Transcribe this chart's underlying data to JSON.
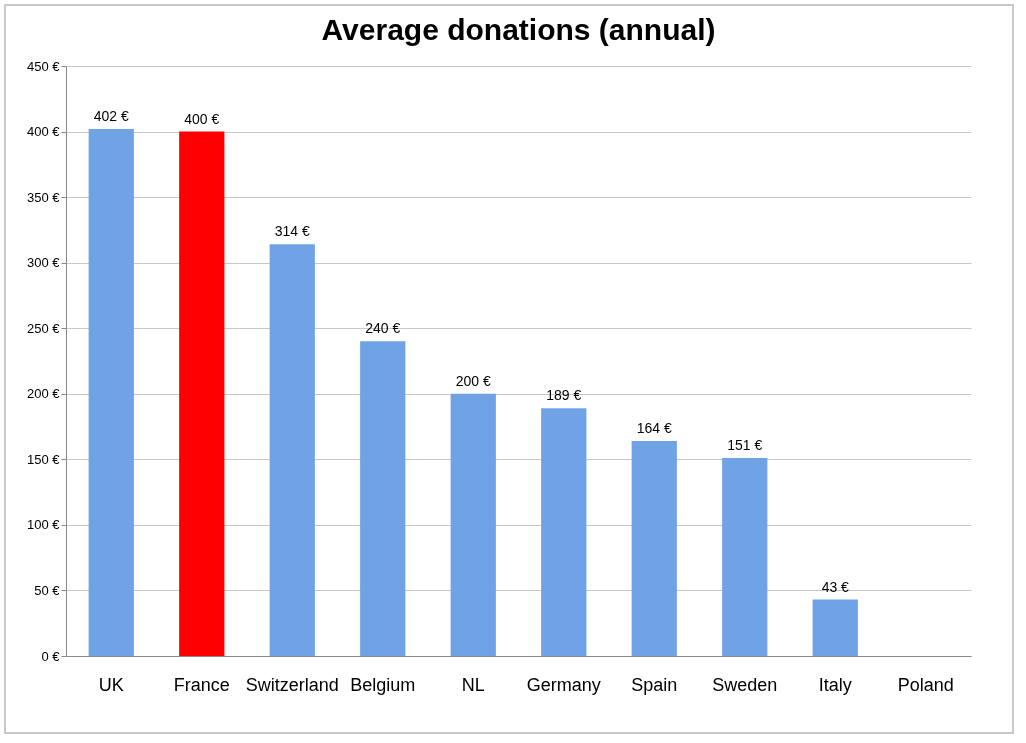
{
  "chart_data": {
    "type": "bar",
    "title": "Average donations (annual)",
    "categories": [
      "UK",
      "France",
      "Switzerland",
      "Belgium",
      "NL",
      "Germany",
      "Spain",
      "Sweden",
      "Italy",
      "Poland"
    ],
    "values": [
      402,
      400,
      314,
      240,
      200,
      189,
      164,
      151,
      43,
      null
    ],
    "colors": [
      "#6fa3e6",
      "#ff0000",
      "#6fa3e6",
      "#6fa3e6",
      "#6fa3e6",
      "#6fa3e6",
      "#6fa3e6",
      "#6fa3e6",
      "#6fa3e6",
      "#6fa3e6"
    ],
    "value_labels": [
      "402 €",
      "400 €",
      "314 €",
      "240 €",
      "200 €",
      "189 €",
      "164 €",
      "151 €",
      "43 €",
      null
    ],
    "ylim": [
      0,
      450
    ],
    "yticks": [
      {
        "value": 0,
        "label": "0 €"
      },
      {
        "value": 50,
        "label": "50 €"
      },
      {
        "value": 100,
        "label": "100 €"
      },
      {
        "value": 150,
        "label": "150 €"
      },
      {
        "value": 200,
        "label": "200 €"
      },
      {
        "value": 250,
        "label": "250 €"
      },
      {
        "value": 300,
        "label": "300 €"
      },
      {
        "value": 350,
        "label": "350 €"
      },
      {
        "value": 400,
        "label": "400 €"
      },
      {
        "value": 450,
        "label": "450 €"
      }
    ],
    "grid": "y",
    "legend": false
  }
}
